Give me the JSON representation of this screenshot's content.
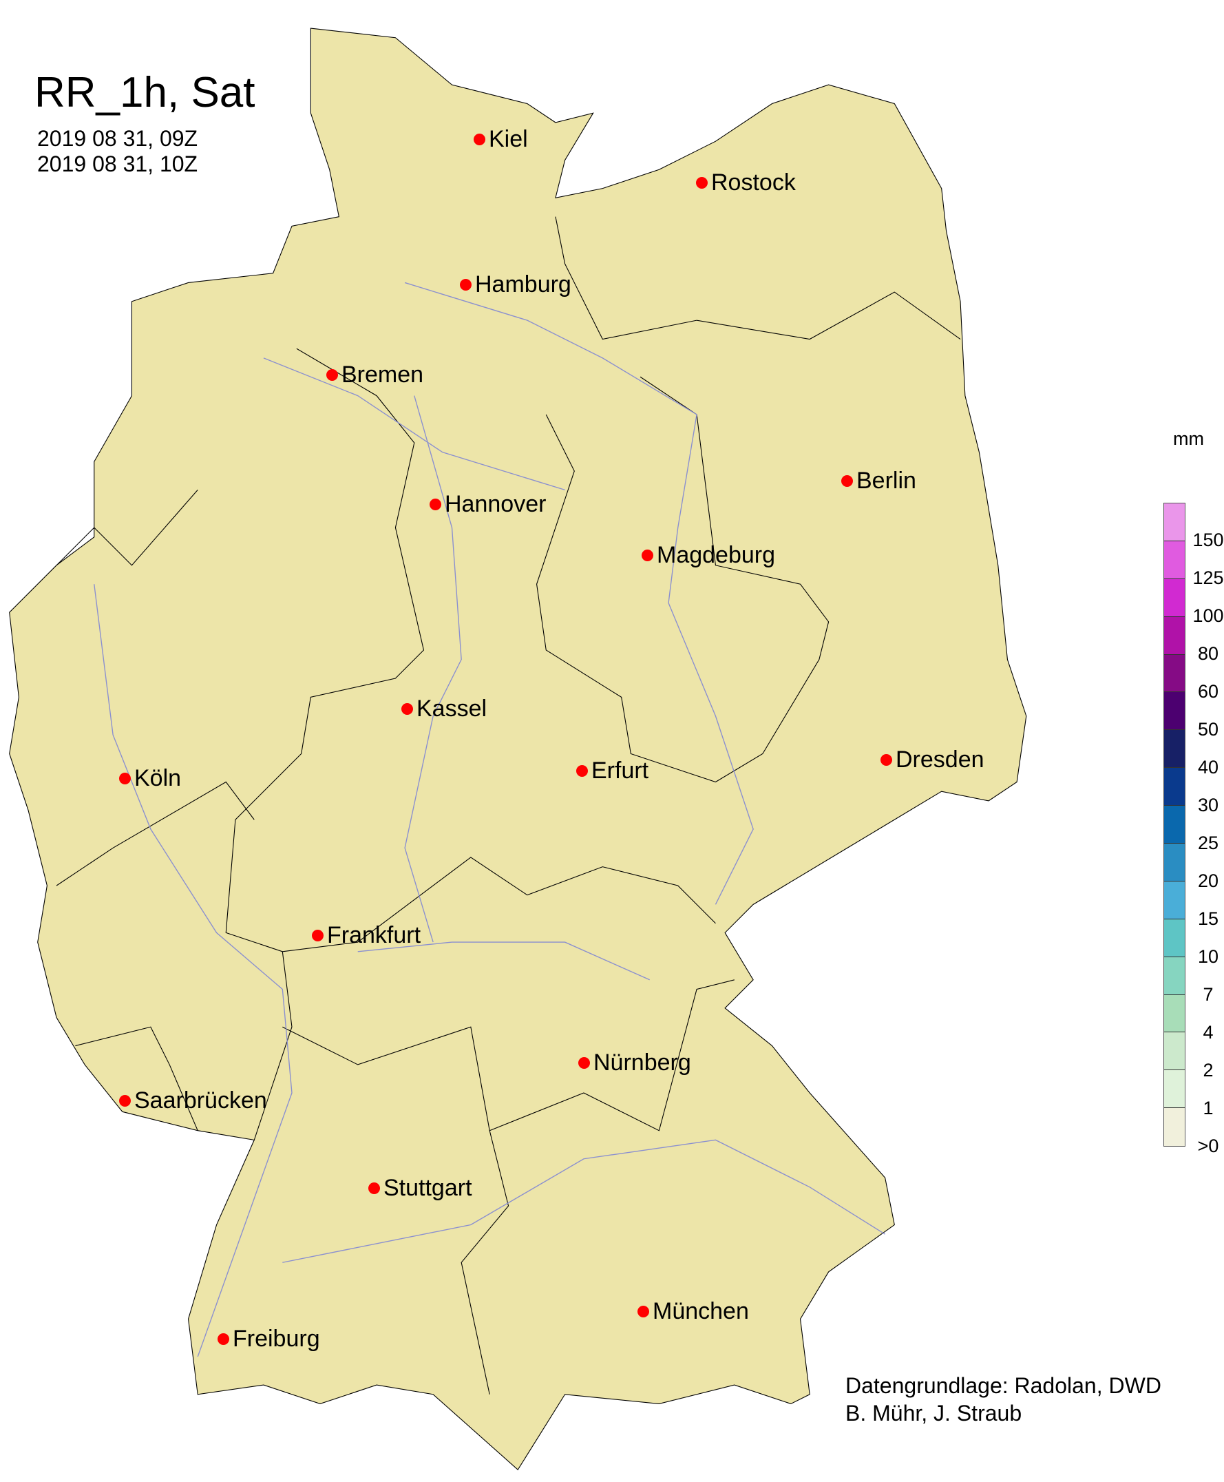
{
  "title": "RR_1h, Sat",
  "time_start": "2019 08 31, 09Z",
  "time_end": "2019 08 31, 10Z",
  "colors": {
    "land": "#ede5a9",
    "border": "#000000",
    "river": "#8a8fd0",
    "city_marker": "#ff0000"
  },
  "cities": [
    {
      "name": "Kiel"
    },
    {
      "name": "Rostock"
    },
    {
      "name": "Hamburg"
    },
    {
      "name": "Bremen"
    },
    {
      "name": "Hannover"
    },
    {
      "name": "Berlin"
    },
    {
      "name": "Magdeburg"
    },
    {
      "name": "Kassel"
    },
    {
      "name": "Dresden"
    },
    {
      "name": "Köln"
    },
    {
      "name": "Erfurt"
    },
    {
      "name": "Frankfurt"
    },
    {
      "name": "Nürnberg"
    },
    {
      "name": "Saarbrücken"
    },
    {
      "name": "Stuttgart"
    },
    {
      "name": "München"
    },
    {
      "name": "Freiburg"
    }
  ],
  "legend": {
    "unit": "mm",
    "ticks": [
      "150",
      "125",
      "100",
      "80",
      "60",
      "50",
      "40",
      "30",
      "25",
      "20",
      "15",
      "10",
      "7",
      "4",
      "2",
      "1",
      ">0"
    ],
    "colors": [
      "#ea96ea",
      "#e05be0",
      "#d12ad1",
      "#b012a8",
      "#850b85",
      "#4c0070",
      "#172066",
      "#0a3a8d",
      "#0a68ad",
      "#2a8dc2",
      "#4aaed8",
      "#5ec5c5",
      "#86d5c0",
      "#a8ddb8",
      "#cce9cc",
      "#dff2da",
      "#f1f0dc"
    ]
  },
  "credit": {
    "line1": "Datengrundlage: Radolan, DWD",
    "line2": "B. Mühr, J. Straub"
  }
}
